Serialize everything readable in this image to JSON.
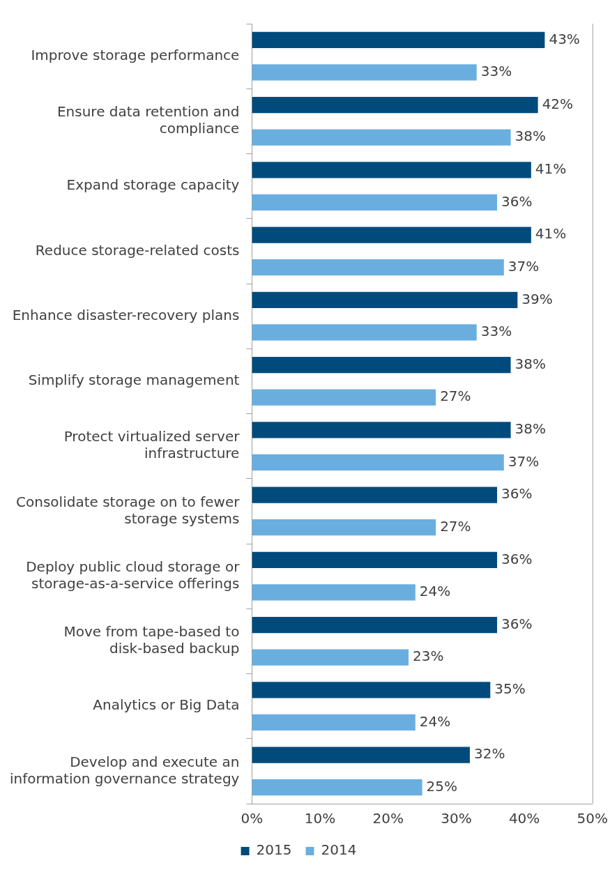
{
  "chart_data": {
    "type": "bar",
    "orientation": "horizontal",
    "categories": [
      "Improve storage performance",
      "Ensure data retention and compliance",
      "Expand storage capacity",
      "Reduce storage-related costs",
      "Enhance disaster-recovery plans",
      "Simplify storage management",
      "Protect virtualized server infrastructure",
      "Consolidate storage on to fewer storage systems",
      "Deploy public cloud storage or storage-as-a-service offerings",
      "Move from tape-based to disk-based backup",
      "Analytics or Big Data",
      "Develop and execute an information governance strategy"
    ],
    "series": [
      {
        "name": "2015",
        "color": "#004b7c",
        "values": [
          43,
          42,
          41,
          41,
          39,
          38,
          38,
          36,
          36,
          36,
          35,
          32
        ],
        "value_labels": [
          "43%",
          "42%",
          "41%",
          "41%",
          "39%",
          "38%",
          "38%",
          "36%",
          "36%",
          "36%",
          "35%",
          "32%"
        ]
      },
      {
        "name": "2014",
        "color": "#69aedf",
        "values": [
          33,
          38,
          36,
          37,
          33,
          27,
          37,
          27,
          24,
          23,
          24,
          25
        ],
        "value_labels": [
          "33%",
          "38%",
          "36%",
          "37%",
          "33%",
          "27%",
          "37%",
          "27%",
          "24%",
          "23%",
          "24%",
          "25%"
        ]
      }
    ],
    "xlim": [
      0,
      50
    ],
    "xticks": [
      {
        "value": 0,
        "label": "0%"
      },
      {
        "value": 10,
        "label": "10%"
      },
      {
        "value": 20,
        "label": "20%"
      },
      {
        "value": 30,
        "label": "30%"
      },
      {
        "value": 40,
        "label": "40%"
      },
      {
        "value": 50,
        "label": "50%"
      }
    ],
    "grid": false,
    "legend": "bottom"
  }
}
